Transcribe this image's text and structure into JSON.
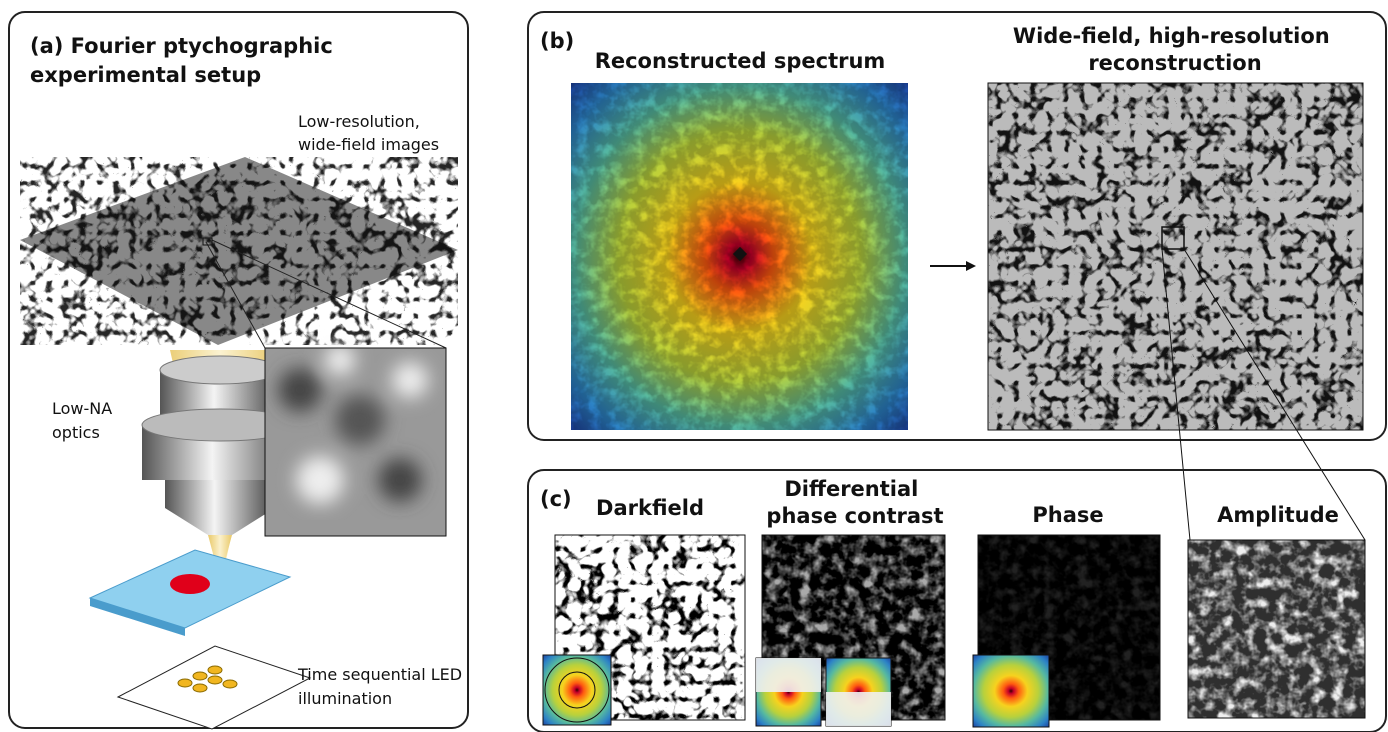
{
  "panel_a": {
    "title": [
      "(a) Fourier ptychographic",
      "experimental setup"
    ],
    "sample_label": [
      "Low-resolution,",
      "wide-field images"
    ],
    "optics_label": [
      "Low-NA",
      "optics"
    ],
    "led_label": [
      "Time sequential LED",
      "illumination"
    ]
  },
  "panel_b": {
    "tag": "(b)",
    "spectrum_title": "Reconstructed spectrum",
    "reconstruction_title": [
      "Wide-field, high-resolution",
      "reconstruction"
    ]
  },
  "panel_c": {
    "tag": "(c)",
    "darkfield": "Darkfield",
    "dpc": [
      "Differential",
      "phase contrast"
    ],
    "phase": "Phase",
    "amplitude": "Amplitude"
  }
}
